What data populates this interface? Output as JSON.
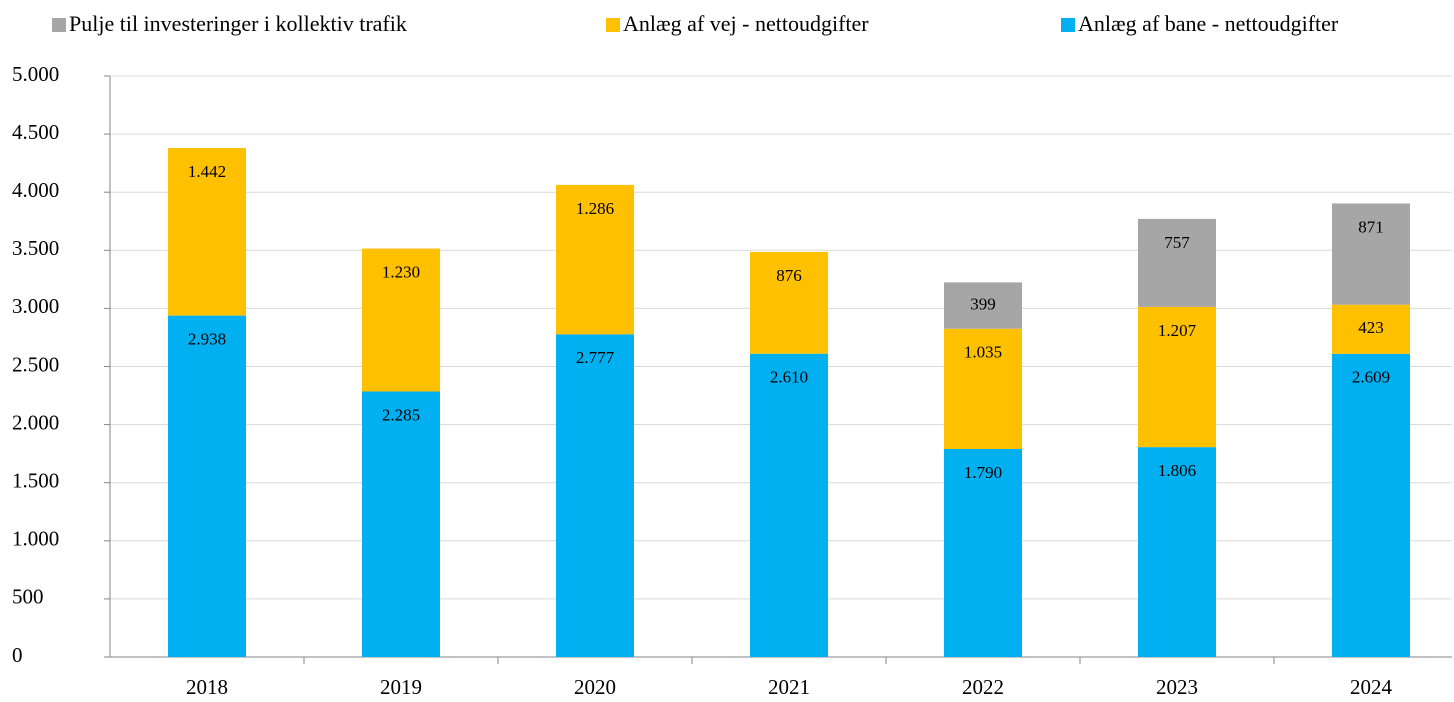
{
  "chart_data": {
    "type": "bar",
    "stacked": true,
    "categories": [
      "2018",
      "2019",
      "2020",
      "2021",
      "2022",
      "2023",
      "2024"
    ],
    "series": [
      {
        "name": "Pulje til investeringer i kollektiv trafik",
        "color": "#a6a6a6",
        "values": [
          null,
          null,
          null,
          null,
          399,
          757,
          871
        ]
      },
      {
        "name": "Anlæg af vej - nettoudgifter",
        "color": "#ffc000",
        "values": [
          1442,
          1230,
          1286,
          876,
          1035,
          1207,
          423
        ],
        "value_labels": [
          "1.442",
          "1.230",
          "1.286",
          "876",
          "1.035",
          "1.207",
          "423"
        ]
      },
      {
        "name": "Anlæg af bane - nettoudgifter",
        "color": "#00b0f0",
        "values": [
          2938,
          2285,
          2777,
          2610,
          1790,
          1806,
          2609
        ],
        "value_labels": [
          "2.938",
          "2.285",
          "2.777",
          "2.610",
          "1.790",
          "1.806",
          "2.609"
        ]
      }
    ],
    "ylim": [
      0,
      5000
    ],
    "yticks": [
      0,
      500,
      {
        "value": 1000,
        "label": "1.000"
      },
      {
        "value": 1500,
        "label": "1.500"
      },
      {
        "value": 2000,
        "label": "2.000"
      },
      {
        "value": 2500,
        "label": "2.500"
      },
      {
        "value": 3000,
        "label": "3.000"
      },
      {
        "value": 3500,
        "label": "3.500"
      },
      {
        "value": 4000,
        "label": "4.000"
      },
      {
        "value": 4500,
        "label": "4.500"
      },
      {
        "value": 5000,
        "label": "5.000"
      }
    ],
    "grid": true,
    "legend": "top"
  }
}
